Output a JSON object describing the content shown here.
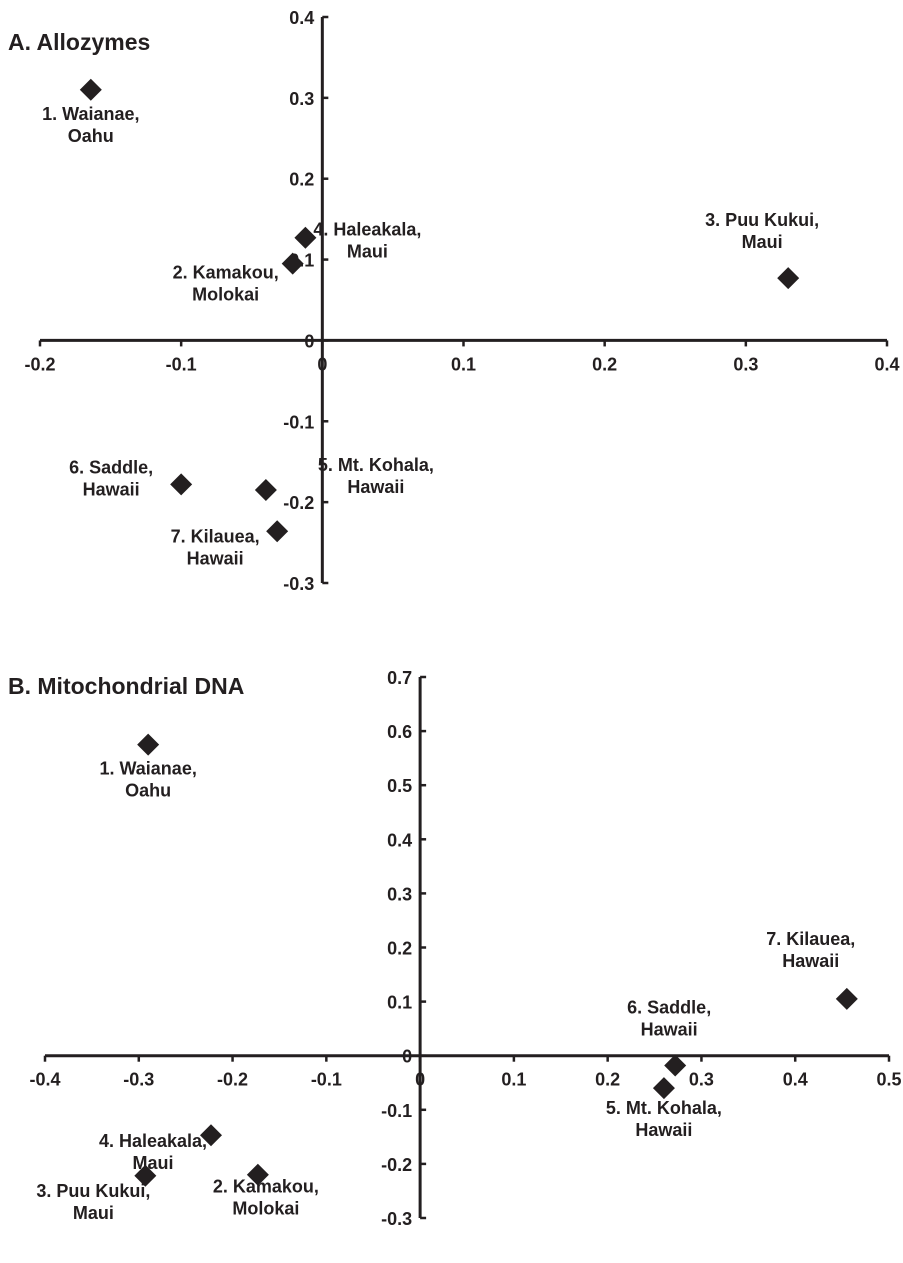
{
  "colors": {
    "ink": "#231f20",
    "background": "#ffffff"
  },
  "chart_data": [
    {
      "type": "scatter",
      "title": "A.  Allozymes",
      "xlabel": "",
      "ylabel": "",
      "xlim": [
        -0.2,
        0.4
      ],
      "ylim": [
        -0.3,
        0.4
      ],
      "x_ticks": [
        "-0.2",
        "-0.1",
        "0",
        "0.1",
        "0.2",
        "0.3",
        "0.4"
      ],
      "y_ticks": [
        "0.4",
        "0.3",
        "0.2",
        "0.1",
        "0",
        "-0.1",
        "-0.2",
        "-0.3"
      ],
      "marker": "diamond",
      "grid": false,
      "legend": "none",
      "points": [
        {
          "label": [
            "1.  Waianae,",
            "Oahu"
          ],
          "x": -0.164,
          "y": 0.31
        },
        {
          "label": [
            "2. Kamakou,",
            "Molokai"
          ],
          "x": -0.021,
          "y": 0.095
        },
        {
          "label": [
            "3. Puu Kukui,",
            "Maui"
          ],
          "x": 0.33,
          "y": 0.077
        },
        {
          "label": [
            "4. Haleakala,",
            "Maui"
          ],
          "x": -0.012,
          "y": 0.127
        },
        {
          "label": [
            "5. Mt. Kohala,",
            "Hawaii"
          ],
          "x": -0.04,
          "y": -0.185
        },
        {
          "label": [
            "6. Saddle,",
            "Hawaii"
          ],
          "x": -0.1,
          "y": -0.178
        },
        {
          "label": [
            "7. Kilauea,",
            "Hawaii"
          ],
          "x": -0.032,
          "y": -0.236
        }
      ]
    },
    {
      "type": "scatter",
      "title": "B. Mitochondrial DNA",
      "xlabel": "",
      "ylabel": "",
      "xlim": [
        -0.4,
        0.5
      ],
      "ylim": [
        -0.3,
        0.7
      ],
      "x_ticks": [
        "-0.4",
        "-0.3",
        "-0.2",
        "-0.1",
        "0",
        "0.1",
        "0.2",
        "0.3",
        "0.4",
        "0.5"
      ],
      "y_ticks": [
        "0.7",
        "0.6",
        "0.5",
        "0.4",
        "0.3",
        "0.2",
        "0.1",
        "0",
        "-0.1",
        "-0.2",
        "-0.3"
      ],
      "marker": "diamond",
      "grid": false,
      "legend": "none",
      "points": [
        {
          "label": [
            "1.  Waianae,",
            "Oahu"
          ],
          "x": -0.29,
          "y": 0.575
        },
        {
          "label": [
            "2. Kamakou,",
            "Molokai"
          ],
          "x": -0.173,
          "y": -0.22
        },
        {
          "label": [
            "3. Puu Kukui,",
            "Maui"
          ],
          "x": -0.293,
          "y": -0.222
        },
        {
          "label": [
            "4. Haleakala,",
            "Maui"
          ],
          "x": -0.223,
          "y": -0.147
        },
        {
          "label": [
            "5. Mt. Kohala,",
            "Hawaii"
          ],
          "x": 0.26,
          "y": -0.06
        },
        {
          "label": [
            "6. Saddle,",
            "Hawaii"
          ],
          "x": 0.272,
          "y": -0.018
        },
        {
          "label": [
            "7. Kilauea,",
            "Hawaii"
          ],
          "x": 0.455,
          "y": 0.105
        }
      ]
    }
  ]
}
